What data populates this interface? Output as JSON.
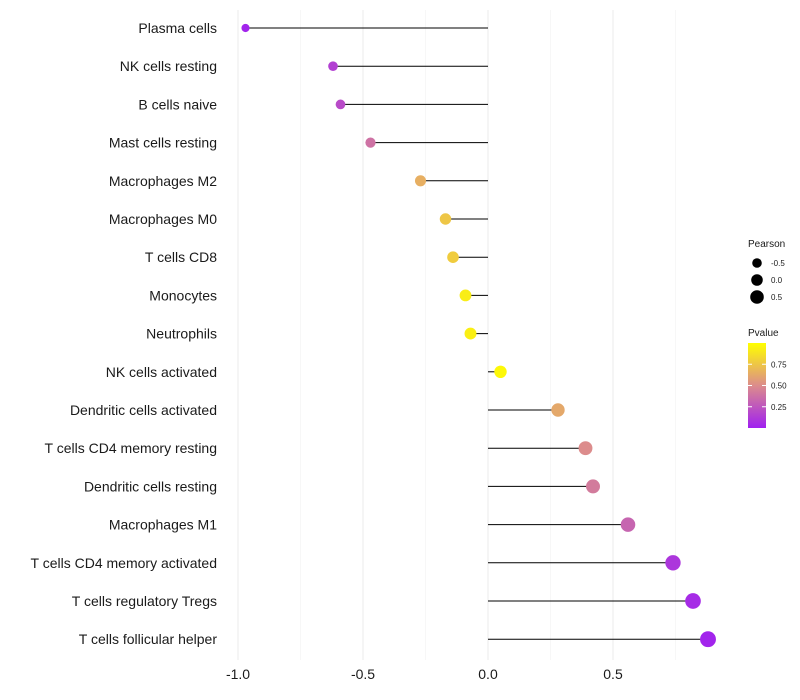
{
  "chart_data": {
    "type": "lollipop",
    "title": "",
    "xlabel": "",
    "ylabel": "",
    "xlim": [
      -1.0,
      0.9
    ],
    "x_ticks": [
      -1.0,
      -0.5,
      0.0,
      0.5
    ],
    "x_tick_labels": [
      "-1.0",
      "-0.5",
      "0.0",
      "0.5"
    ],
    "grid": true,
    "categories": [
      "Plasma cells",
      "NK cells resting",
      "B cells naive",
      "Mast cells resting",
      "Macrophages M2",
      "Macrophages M0",
      "T cells CD8",
      "Monocytes",
      "Neutrophils",
      "NK cells activated",
      "Dendritic cells activated",
      "T cells CD4 memory resting",
      "Dendritic cells resting",
      "Macrophages M1",
      "T cells CD4 memory activated",
      "T cells regulatory  Tregs",
      "T cells follicular helper"
    ],
    "values": [
      -0.97,
      -0.62,
      -0.59,
      -0.47,
      -0.27,
      -0.17,
      -0.14,
      -0.09,
      -0.07,
      0.05,
      0.28,
      0.39,
      0.42,
      0.56,
      0.74,
      0.82,
      0.88
    ],
    "pvalues": [
      0.02,
      0.15,
      0.2,
      0.38,
      0.65,
      0.75,
      0.78,
      0.92,
      0.93,
      0.97,
      0.62,
      0.5,
      0.42,
      0.32,
      0.1,
      0.05,
      0.02
    ],
    "legend": {
      "position": "right",
      "size_title": "Pearson",
      "size_values": [
        -0.5,
        0.0,
        0.5
      ],
      "size_labels": [
        "-0.5",
        "0.0",
        "0.5"
      ],
      "color_title": "Pvalue",
      "color_ticks": [
        0.25,
        0.5,
        0.75
      ],
      "color_tick_labels": [
        "0.25",
        "0.50",
        "0.75"
      ],
      "color_range": [
        0.0,
        1.0
      ],
      "color_low": "#a020f0",
      "color_mid": "#dc8c8c",
      "color_high": "#ffff00"
    }
  }
}
